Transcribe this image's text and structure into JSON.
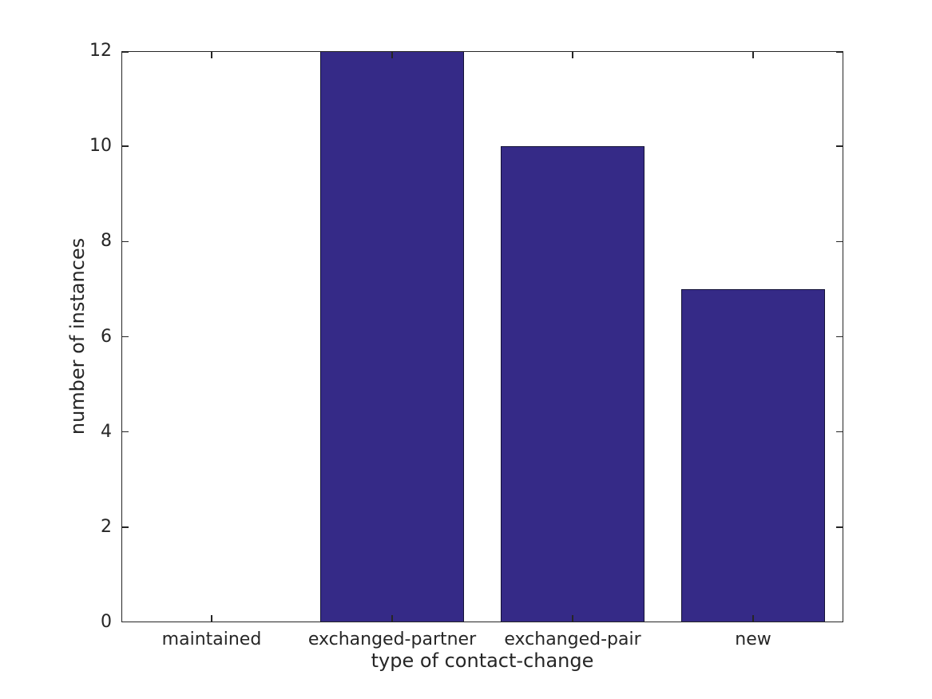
{
  "figure": {
    "background_color": "#ffffff",
    "text_color": "#262626"
  },
  "chart_data": {
    "type": "bar",
    "title": "",
    "categories": [
      "maintained",
      "exchanged-partner",
      "exchanged-pair",
      "new"
    ],
    "values": [
      0,
      12,
      10,
      7
    ],
    "xlabel": "type of contact-change",
    "ylabel": "number of instances",
    "ylim": [
      0,
      12
    ],
    "yticks": [
      0,
      2,
      4,
      6,
      8,
      10,
      12
    ],
    "ytick_labels": [
      "0",
      "2",
      "4",
      "6",
      "8",
      "10",
      "12"
    ],
    "bar_width_fraction": 0.8,
    "bar_color": "#352a87",
    "bar_edge_color": "#131236",
    "axis_color": "#262626",
    "grid": false,
    "legend": null,
    "tick_direction": "in",
    "box": true
  }
}
